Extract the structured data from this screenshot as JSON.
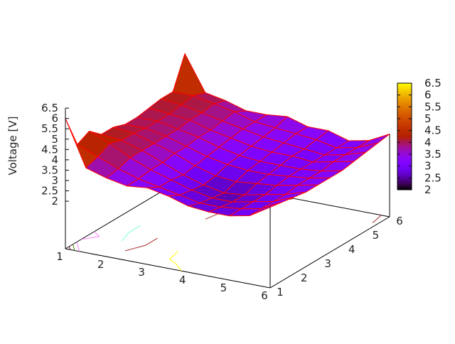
{
  "chart_data": {
    "type": "surface3d",
    "title": "",
    "xlabel": "",
    "ylabel": "",
    "zlabel": "Voltage [V]",
    "x": [
      1,
      1.5,
      2,
      2.5,
      3,
      3.5,
      4,
      4.5,
      5,
      5.5,
      6
    ],
    "y": [
      1,
      1.5,
      2,
      2.5,
      3,
      3.5,
      4,
      4.5,
      5,
      5.5,
      6
    ],
    "z": [
      [
        6.0,
        3.8,
        3.5,
        3.3,
        3.4,
        3.2,
        2.9,
        2.8,
        2.8,
        3.0,
        3.6
      ],
      [
        4.4,
        4.0,
        3.6,
        3.3,
        3.1,
        2.9,
        2.7,
        2.7,
        2.8,
        3.0,
        3.5
      ],
      [
        4.7,
        4.3,
        3.8,
        3.4,
        3.1,
        2.8,
        2.6,
        2.6,
        2.8,
        3.0,
        3.4
      ],
      [
        4.2,
        4.1,
        3.8,
        3.4,
        3.0,
        2.7,
        2.5,
        2.6,
        2.8,
        3.0,
        3.3
      ],
      [
        4.2,
        4.1,
        3.8,
        3.5,
        3.1,
        2.8,
        2.7,
        2.8,
        2.9,
        3.1,
        3.3
      ],
      [
        4.0,
        4.0,
        3.8,
        3.5,
        3.2,
        3.0,
        2.9,
        2.9,
        3.0,
        3.1,
        3.3
      ],
      [
        4.0,
        4.0,
        3.8,
        3.6,
        3.3,
        3.1,
        3.0,
        3.0,
        3.0,
        3.1,
        3.3
      ],
      [
        4.1,
        4.0,
        3.9,
        3.6,
        3.4,
        3.2,
        3.1,
        3.1,
        3.0,
        3.2,
        3.4
      ],
      [
        4.2,
        4.1,
        3.9,
        3.7,
        3.5,
        3.3,
        3.2,
        3.1,
        3.0,
        3.2,
        3.5
      ],
      [
        4.2,
        4.2,
        4.0,
        3.8,
        3.5,
        3.4,
        3.3,
        3.2,
        3.0,
        3.2,
        3.6
      ],
      [
        5.7,
        4.0,
        3.8,
        3.5,
        3.5,
        3.6,
        3.3,
        3.3,
        3.0,
        3.2,
        3.7
      ]
    ],
    "xlim": [
      1,
      6
    ],
    "ylim": [
      1,
      6
    ],
    "zlim": [
      2,
      6.5
    ],
    "x_ticks": [
      "1",
      "2",
      "3",
      "4",
      "5",
      "6"
    ],
    "y_ticks": [
      "1",
      "2",
      "3",
      "4",
      "5",
      "6"
    ],
    "z_ticks": [
      "2",
      "2.5",
      "3",
      "3.5",
      "4",
      "4.5",
      "5",
      "5.5",
      "6",
      "6.5"
    ],
    "colorbar": {
      "range": [
        2,
        6.5
      ],
      "ticks": [
        "2",
        "2.5",
        "3",
        "3.5",
        "4",
        "4.5",
        "5",
        "5.5",
        "6",
        "6.5"
      ]
    },
    "surface_mesh_color": "#ff0000",
    "base_contours": true,
    "contour_levels": [
      2.5,
      3,
      3.5,
      4,
      4.5,
      5,
      5.5
    ],
    "contour_colors": [
      "#40e0d0",
      "#ffff00",
      "#a52a2a",
      "#7fffd4",
      "#ff80ff",
      "#4a8a00",
      "#8b0000"
    ]
  }
}
